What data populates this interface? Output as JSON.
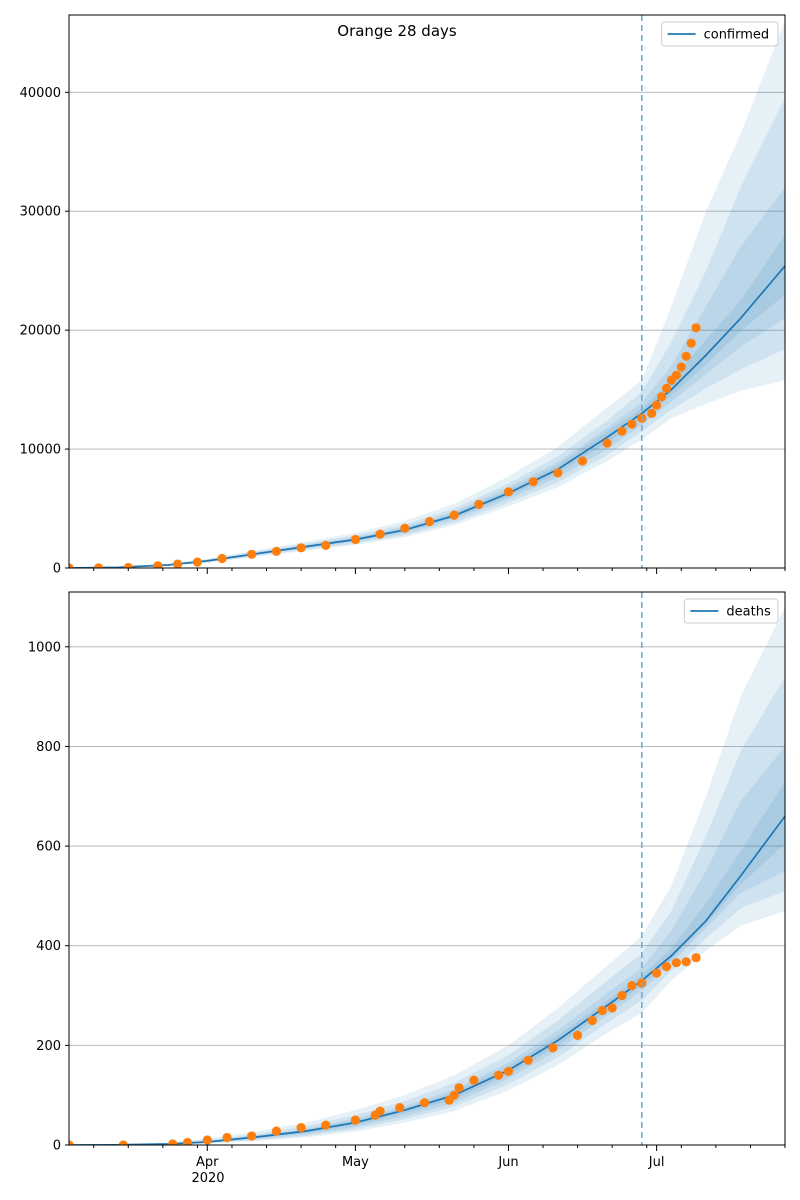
{
  "figure": {
    "title": "Orange 28 days",
    "year_label": "2020"
  },
  "colors": {
    "model_line": "#1f77b4",
    "band": "#1f77b4",
    "observed": "#ff7f0e",
    "grid": "#b0b0b0",
    "cutoff_line": "#6baed6"
  },
  "chart_data": [
    {
      "type": "line",
      "legend": "confirmed",
      "legend_position": "top-right",
      "grid": "horizontal",
      "ylim": [
        0,
        46500
      ],
      "yticks": [
        0,
        10000,
        20000,
        30000,
        40000
      ],
      "xlim": [
        "2020-03-04",
        "2020-07-27"
      ],
      "xticks_major": [
        {
          "date": "2020-04-01",
          "label": "Apr"
        },
        {
          "date": "2020-05-01",
          "label": "May"
        },
        {
          "date": "2020-06-01",
          "label": "Jun"
        },
        {
          "date": "2020-07-01",
          "label": "Jul"
        }
      ],
      "forecast_start": "2020-06-28",
      "model": {
        "x": [
          "2020-03-04",
          "2020-03-14",
          "2020-03-24",
          "2020-04-01",
          "2020-04-11",
          "2020-04-21",
          "2020-05-01",
          "2020-05-11",
          "2020-05-21",
          "2020-06-01",
          "2020-06-11",
          "2020-06-21",
          "2020-06-28",
          "2020-07-04",
          "2020-07-11",
          "2020-07-18",
          "2020-07-27"
        ],
        "y": [
          0,
          60,
          250,
          600,
          1200,
          1800,
          2400,
          3200,
          4400,
          6300,
          8300,
          11000,
          13000,
          15000,
          17900,
          21000,
          25400
        ]
      },
      "bands": [
        {
          "lower": [
            0,
            40,
            180,
            450,
            950,
            1450,
            1950,
            2600,
            3600,
            5200,
            6800,
            9000,
            10800,
            12600,
            13800,
            14900,
            15800
          ],
          "upper": [
            0,
            90,
            330,
            780,
            1500,
            2200,
            2950,
            3950,
            5400,
            7700,
            10200,
            13500,
            15800,
            22000,
            30000,
            36500,
            46000
          ]
        },
        {
          "lower": [
            0,
            45,
            200,
            490,
            1020,
            1550,
            2070,
            2770,
            3800,
            5500,
            7200,
            9500,
            11500,
            13300,
            15100,
            16700,
            18400
          ],
          "upper": [
            0,
            80,
            300,
            720,
            1400,
            2050,
            2750,
            3650,
            5000,
            7100,
            9400,
            12400,
            14800,
            19000,
            25000,
            32000,
            39500
          ]
        },
        {
          "lower": [
            0,
            50,
            215,
            530,
            1090,
            1650,
            2200,
            2930,
            4050,
            5800,
            7600,
            10000,
            12000,
            14000,
            16300,
            18600,
            21000
          ],
          "upper": [
            0,
            70,
            280,
            670,
            1310,
            1950,
            2600,
            3450,
            4750,
            6800,
            8900,
            11800,
            13900,
            17000,
            22000,
            27000,
            32000
          ]
        },
        {
          "lower": [
            0,
            55,
            230,
            565,
            1150,
            1720,
            2300,
            3060,
            4220,
            6050,
            7950,
            10500,
            12500,
            14500,
            17100,
            19900,
            23000
          ],
          "upper": [
            0,
            65,
            265,
            635,
            1250,
            1880,
            2500,
            3330,
            4580,
            6550,
            8650,
            11500,
            13400,
            15800,
            19200,
            22500,
            28000
          ]
        }
      ],
      "observed": {
        "x": [
          "2020-03-04",
          "2020-03-10",
          "2020-03-16",
          "2020-03-22",
          "2020-03-26",
          "2020-03-30",
          "2020-04-04",
          "2020-04-10",
          "2020-04-15",
          "2020-04-20",
          "2020-04-25",
          "2020-05-01",
          "2020-05-06",
          "2020-05-11",
          "2020-05-16",
          "2020-05-21",
          "2020-05-26",
          "2020-06-01",
          "2020-06-06",
          "2020-06-11",
          "2020-06-16",
          "2020-06-21",
          "2020-06-24",
          "2020-06-26",
          "2020-06-28",
          "2020-06-30",
          "2020-07-01",
          "2020-07-02",
          "2020-07-03",
          "2020-07-04",
          "2020-07-05",
          "2020-07-06",
          "2020-07-07",
          "2020-07-08",
          "2020-07-09"
        ],
        "y": [
          0,
          10,
          40,
          180,
          330,
          500,
          800,
          1150,
          1400,
          1700,
          1900,
          2400,
          2850,
          3350,
          3900,
          4450,
          5350,
          6400,
          7250,
          8000,
          9000,
          10500,
          11500,
          12100,
          12600,
          13000,
          13700,
          14400,
          15100,
          15800,
          16200,
          16900,
          17800,
          18900,
          20200
        ]
      }
    },
    {
      "type": "line",
      "legend": "deaths",
      "legend_position": "top-right",
      "grid": "horizontal",
      "ylim": [
        0,
        1110
      ],
      "yticks": [
        0,
        200,
        400,
        600,
        800,
        1000
      ],
      "xlim": [
        "2020-03-04",
        "2020-07-27"
      ],
      "xticks_major": [
        {
          "date": "2020-04-01",
          "label": "Apr"
        },
        {
          "date": "2020-05-01",
          "label": "May"
        },
        {
          "date": "2020-06-01",
          "label": "Jun"
        },
        {
          "date": "2020-07-01",
          "label": "Jul"
        }
      ],
      "forecast_start": "2020-06-28",
      "model": {
        "x": [
          "2020-03-04",
          "2020-03-14",
          "2020-03-24",
          "2020-04-01",
          "2020-04-11",
          "2020-04-21",
          "2020-05-01",
          "2020-05-11",
          "2020-05-21",
          "2020-06-01",
          "2020-06-11",
          "2020-06-21",
          "2020-06-28",
          "2020-07-04",
          "2020-07-11",
          "2020-07-18",
          "2020-07-27"
        ],
        "y": [
          0,
          0.5,
          2,
          6,
          16,
          28,
          45,
          70,
          100,
          150,
          210,
          280,
          330,
          380,
          450,
          540,
          660
        ]
      },
      "bands": [
        {
          "lower": [
            0,
            0.2,
            1,
            3,
            8,
            15,
            27,
            45,
            68,
            110,
            160,
            225,
            265,
            330,
            390,
            440,
            470
          ],
          "upper": [
            0,
            1.5,
            5,
            13,
            27,
            45,
            70,
            100,
            140,
            200,
            275,
            360,
            420,
            520,
            700,
            900,
            1080
          ]
        },
        {
          "lower": [
            0,
            0.3,
            1.3,
            4,
            10,
            18,
            32,
            52,
            77,
            122,
            176,
            245,
            290,
            350,
            415,
            475,
            510
          ],
          "upper": [
            0,
            1.1,
            4,
            10,
            22,
            38,
            60,
            88,
            125,
            180,
            250,
            330,
            385,
            470,
            620,
            790,
            940
          ]
        },
        {
          "lower": [
            0,
            0.4,
            1.6,
            4.8,
            12,
            21,
            36,
            58,
            85,
            133,
            190,
            260,
            310,
            365,
            435,
            505,
            550
          ],
          "upper": [
            0,
            0.8,
            3,
            8,
            19,
            33,
            53,
            78,
            112,
            165,
            230,
            305,
            355,
            430,
            550,
            690,
            800
          ]
        },
        {
          "lower": [
            0,
            0.45,
            1.8,
            5.4,
            14,
            24,
            40,
            64,
            92,
            141,
            200,
            270,
            320,
            372,
            443,
            523,
            605
          ],
          "upper": [
            0,
            0.6,
            2.4,
            7,
            18,
            31,
            49,
            74,
            106,
            158,
            220,
            290,
            340,
            395,
            485,
            590,
            730
          ]
        }
      ],
      "observed": {
        "x": [
          "2020-03-04",
          "2020-03-15",
          "2020-03-25",
          "2020-03-28",
          "2020-04-01",
          "2020-04-05",
          "2020-04-10",
          "2020-04-15",
          "2020-04-20",
          "2020-04-25",
          "2020-05-01",
          "2020-05-05",
          "2020-05-06",
          "2020-05-10",
          "2020-05-15",
          "2020-05-20",
          "2020-05-21",
          "2020-05-22",
          "2020-05-25",
          "2020-05-30",
          "2020-06-01",
          "2020-06-05",
          "2020-06-10",
          "2020-06-15",
          "2020-06-18",
          "2020-06-20",
          "2020-06-22",
          "2020-06-24",
          "2020-06-26",
          "2020-06-28",
          "2020-07-01",
          "2020-07-03",
          "2020-07-05",
          "2020-07-07",
          "2020-07-09"
        ],
        "y": [
          0,
          0,
          2,
          5,
          10,
          15,
          18,
          28,
          35,
          40,
          50,
          60,
          68,
          75,
          85,
          90,
          100,
          115,
          130,
          140,
          148,
          170,
          195,
          220,
          250,
          270,
          275,
          300,
          320,
          325,
          345,
          358,
          366,
          368,
          376
        ]
      }
    }
  ]
}
